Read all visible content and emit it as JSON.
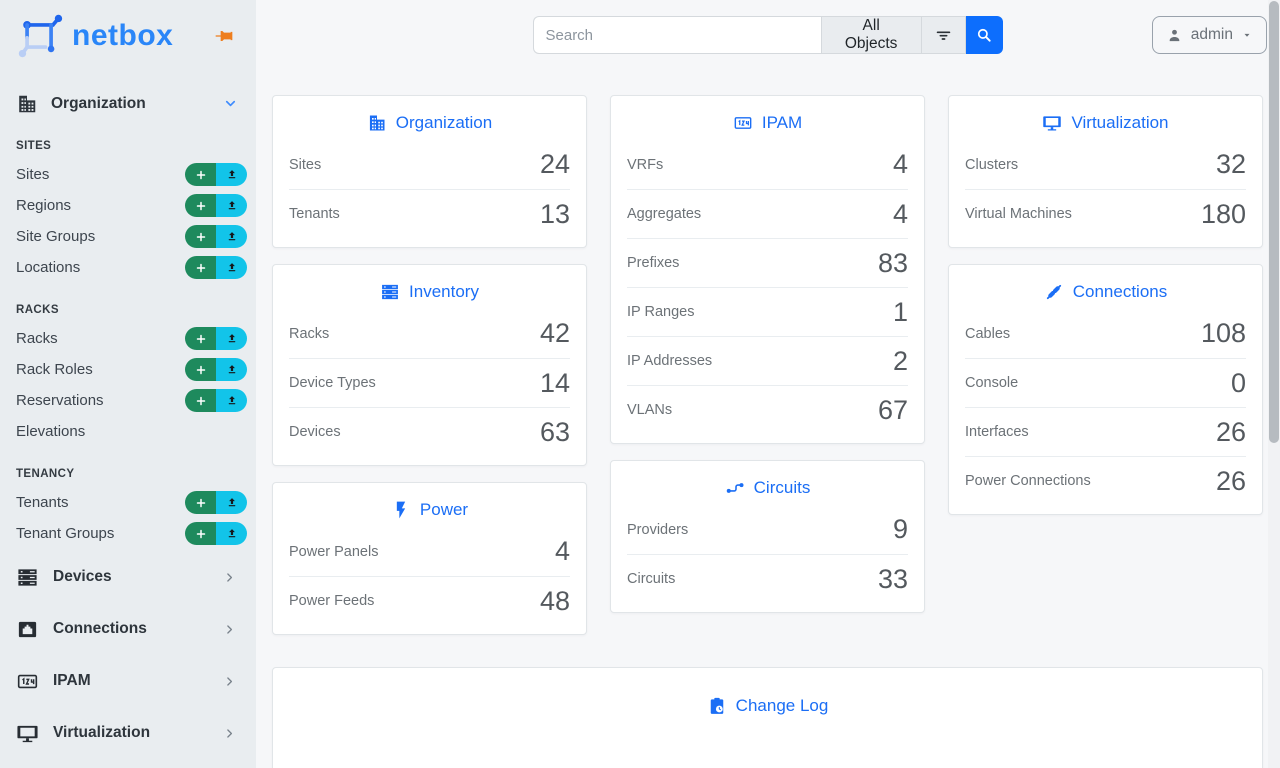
{
  "brand": {
    "name": "netbox",
    "logo_icon": "netbox-nodes-logo",
    "pin_icon": "pushpin-icon"
  },
  "topbar": {
    "search_placeholder": "Search",
    "search_value": "",
    "scope_label": "All Objects",
    "filter_icon": "filter-icon",
    "search_icon": "magnifier-icon",
    "user": {
      "label": "admin",
      "icon": "person-icon",
      "caret_icon": "caret-down-icon"
    }
  },
  "sidebar": {
    "organization": {
      "label": "Organization",
      "icon": "building",
      "state_icon": "chevron-down-icon"
    },
    "sections": [
      {
        "label": "SITES",
        "items": [
          {
            "label": "Sites",
            "actions": true
          },
          {
            "label": "Regions",
            "actions": true
          },
          {
            "label": "Site Groups",
            "actions": true
          },
          {
            "label": "Locations",
            "actions": true
          }
        ]
      },
      {
        "label": "RACKS",
        "items": [
          {
            "label": "Racks",
            "actions": true
          },
          {
            "label": "Rack Roles",
            "actions": true
          },
          {
            "label": "Reservations",
            "actions": true
          },
          {
            "label": "Elevations",
            "actions": false
          }
        ]
      },
      {
        "label": "TENANCY",
        "items": [
          {
            "label": "Tenants",
            "actions": true
          },
          {
            "label": "Tenant Groups",
            "actions": true
          }
        ]
      }
    ],
    "menus": [
      {
        "label": "Devices",
        "icon": "server"
      },
      {
        "label": "Connections",
        "icon": "ethernet"
      },
      {
        "label": "IPAM",
        "icon": "counter"
      },
      {
        "label": "Virtualization",
        "icon": "monitor"
      }
    ]
  },
  "dashboard": {
    "columns": [
      {
        "cards": [
          {
            "id": "organization",
            "title": "Organization",
            "icon": "building",
            "rows": [
              {
                "label": "Sites",
                "value": "24"
              },
              {
                "label": "Tenants",
                "value": "13"
              }
            ]
          },
          {
            "id": "inventory",
            "title": "Inventory",
            "icon": "server",
            "rows": [
              {
                "label": "Racks",
                "value": "42"
              },
              {
                "label": "Device Types",
                "value": "14"
              },
              {
                "label": "Devices",
                "value": "63"
              }
            ]
          },
          {
            "id": "power",
            "title": "Power",
            "icon": "lightning",
            "rows": [
              {
                "label": "Power Panels",
                "value": "4"
              },
              {
                "label": "Power Feeds",
                "value": "48"
              }
            ]
          }
        ]
      },
      {
        "cards": [
          {
            "id": "ipam",
            "title": "IPAM",
            "icon": "counter",
            "rows": [
              {
                "label": "VRFs",
                "value": "4"
              },
              {
                "label": "Aggregates",
                "value": "4"
              },
              {
                "label": "Prefixes",
                "value": "83"
              },
              {
                "label": "IP Ranges",
                "value": "1"
              },
              {
                "label": "IP Addresses",
                "value": "2"
              },
              {
                "label": "VLANs",
                "value": "67"
              }
            ]
          },
          {
            "id": "circuits",
            "title": "Circuits",
            "icon": "transit",
            "rows": [
              {
                "label": "Providers",
                "value": "9"
              },
              {
                "label": "Circuits",
                "value": "33"
              }
            ]
          }
        ]
      },
      {
        "cards": [
          {
            "id": "virtualization",
            "title": "Virtualization",
            "icon": "monitor",
            "rows": [
              {
                "label": "Clusters",
                "value": "32"
              },
              {
                "label": "Virtual Machines",
                "value": "180"
              }
            ]
          },
          {
            "id": "connections",
            "title": "Connections",
            "icon": "cable",
            "rows": [
              {
                "label": "Cables",
                "value": "108"
              },
              {
                "label": "Console",
                "value": "0"
              },
              {
                "label": "Interfaces",
                "value": "26"
              },
              {
                "label": "Power Connections",
                "value": "26"
              }
            ]
          }
        ]
      }
    ],
    "changelog": {
      "title": "Change Log",
      "icon": "clipboard-clock"
    }
  },
  "colors": {
    "accent_blue": "#1b6ef5",
    "brand_blue": "#2a86f8",
    "add_green": "#1e8a5d",
    "import_cyan": "#12c4e9",
    "pin_orange": "#ee7e1e",
    "search_blue": "#0d6efd"
  }
}
